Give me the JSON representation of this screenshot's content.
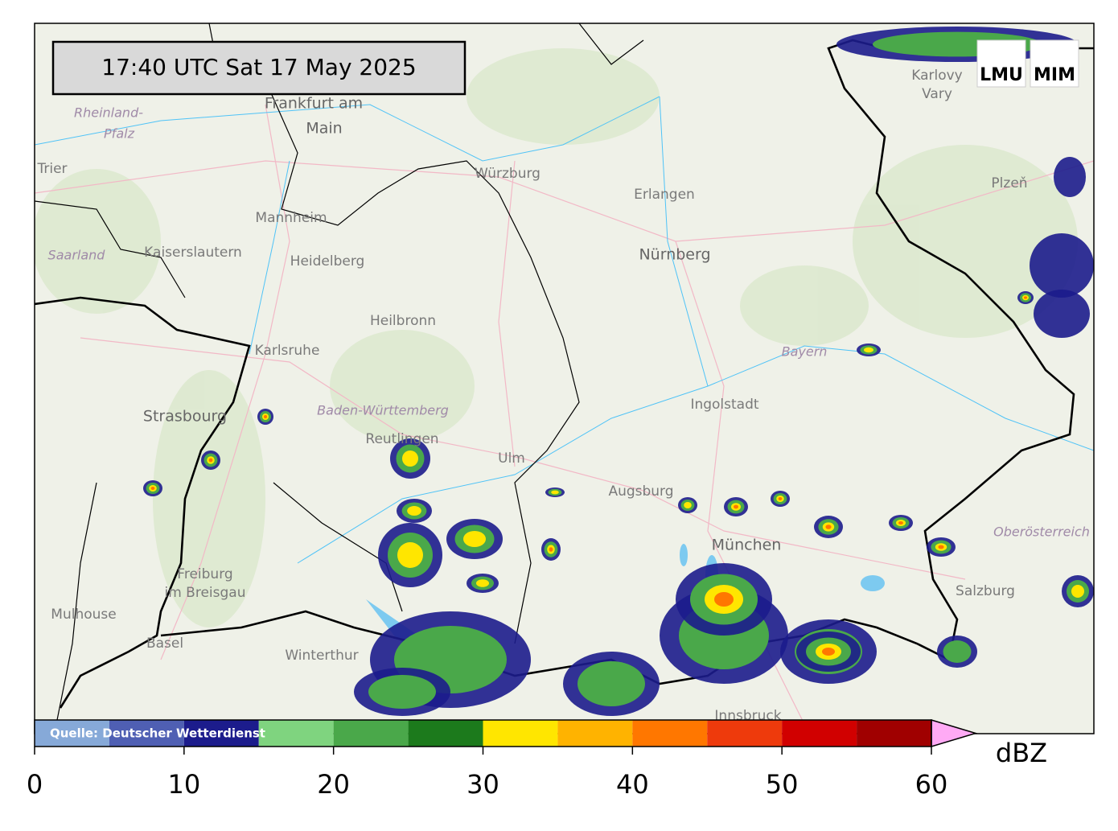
{
  "header": {
    "timestamp": "17:40 UTC  Sat 17 May 2025",
    "logos": [
      "LMU",
      "MIM"
    ]
  },
  "map": {
    "labels": [
      "Frankfurt am",
      "Main",
      "Rheinland-",
      "Pfalz",
      "Trier",
      "Mannheim",
      "Kaiserslautern",
      "Saarland",
      "Heidelberg",
      "Würzburg",
      "Erlangen",
      "Nürnberg",
      "Heilbronn",
      "Karlsruhe",
      "Strasbourg",
      "Baden-Württemberg",
      "Reutlingen",
      "Ulm",
      "Augsburg",
      "Ingolstadt",
      "Bayern",
      "München",
      "Freiburg",
      "im Breisgau",
      "Mulhouse",
      "Basel",
      "Winterthur",
      "Salzburg",
      "Oberösterreich",
      "Plzeň",
      "Karlovy",
      "Vary",
      "Innsbruck"
    ]
  },
  "colorbar": {
    "bounds": [
      0,
      5,
      10,
      15,
      20,
      25,
      30,
      35,
      40,
      45,
      50,
      55,
      60
    ],
    "colors": [
      "#86a9d8",
      "#4f5fb3",
      "#1c1c8c",
      "#7fd47f",
      "#4aa84a",
      "#1c7a1c",
      "#ffe600",
      "#ffb300",
      "#ff7700",
      "#ee3a0c",
      "#d10000",
      "#a00000"
    ],
    "over_color": "#ffaaf5",
    "ticks": [
      0,
      10,
      20,
      30,
      40,
      50,
      60
    ],
    "label": "dBZ",
    "source": "Quelle: Deutscher Wetterdienst"
  }
}
